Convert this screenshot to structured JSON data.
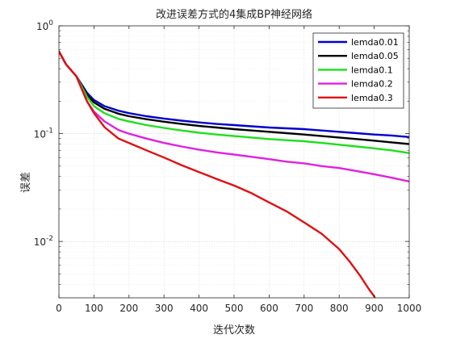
{
  "chart_data": {
    "type": "line",
    "title": "改进误差方式的4集成BP神经网络",
    "xlabel": "迭代次数",
    "ylabel": "误差",
    "xlim": [
      0,
      1000
    ],
    "ylim": [
      0.003,
      1
    ],
    "yscale": "log",
    "grid": true,
    "minor_grid": true,
    "legend_position": "top-right",
    "x_ticks": [
      0,
      100,
      200,
      300,
      400,
      500,
      600,
      700,
      800,
      900,
      1000
    ],
    "x_tick_labels": [
      "0",
      "100",
      "200",
      "300",
      "400",
      "500",
      "600",
      "700",
      "800",
      "900",
      "1000"
    ],
    "y_ticks": [
      0.01,
      0.1,
      1
    ],
    "y_tick_labels": [
      {
        "base": "10",
        "exp": "-2"
      },
      {
        "base": "10",
        "exp": "-1"
      },
      {
        "base": "10",
        "exp": "0"
      }
    ],
    "x": [
      0,
      20,
      50,
      80,
      100,
      130,
      170,
      200,
      250,
      300,
      350,
      400,
      450,
      500,
      550,
      600,
      650,
      700,
      750,
      800,
      850,
      900,
      950,
      1000
    ],
    "series": [
      {
        "name": "lemda0.01",
        "color": "#0000CD",
        "values": [
          0.58,
          0.44,
          0.34,
          0.24,
          0.205,
          0.18,
          0.163,
          0.155,
          0.145,
          0.138,
          0.132,
          0.127,
          0.123,
          0.12,
          0.117,
          0.114,
          0.112,
          0.11,
          0.107,
          0.104,
          0.101,
          0.098,
          0.096,
          0.093
        ]
      },
      {
        "name": "lemda0.05",
        "color": "#000000",
        "values": [
          0.58,
          0.44,
          0.34,
          0.23,
          0.195,
          0.17,
          0.153,
          0.145,
          0.136,
          0.129,
          0.123,
          0.118,
          0.114,
          0.11,
          0.107,
          0.104,
          0.101,
          0.098,
          0.095,
          0.092,
          0.089,
          0.086,
          0.083,
          0.08
        ]
      },
      {
        "name": "lemda0.1",
        "color": "#1BE01B",
        "values": [
          0.58,
          0.44,
          0.34,
          0.22,
          0.18,
          0.155,
          0.137,
          0.13,
          0.12,
          0.113,
          0.107,
          0.102,
          0.098,
          0.095,
          0.092,
          0.089,
          0.087,
          0.085,
          0.082,
          0.079,
          0.076,
          0.073,
          0.07,
          0.066
        ]
      },
      {
        "name": "lemda0.2",
        "color": "#E020E0",
        "values": [
          0.58,
          0.44,
          0.34,
          0.2,
          0.16,
          0.13,
          0.108,
          0.1,
          0.09,
          0.082,
          0.076,
          0.071,
          0.067,
          0.064,
          0.061,
          0.058,
          0.055,
          0.053,
          0.05,
          0.048,
          0.045,
          0.042,
          0.039,
          0.036
        ]
      },
      {
        "name": "lemda0.3",
        "color": "#E01010",
        "x": [
          0,
          20,
          50,
          80,
          100,
          130,
          170,
          200,
          250,
          300,
          350,
          400,
          450,
          500,
          550,
          600,
          650,
          700,
          750,
          800,
          830,
          860,
          885,
          900,
          910
        ],
        "values": [
          0.58,
          0.44,
          0.34,
          0.2,
          0.155,
          0.115,
          0.09,
          0.082,
          0.07,
          0.06,
          0.051,
          0.044,
          0.038,
          0.033,
          0.028,
          0.023,
          0.019,
          0.015,
          0.0118,
          0.0085,
          0.0065,
          0.0048,
          0.0036,
          0.0031,
          0.0026
        ]
      }
    ]
  }
}
